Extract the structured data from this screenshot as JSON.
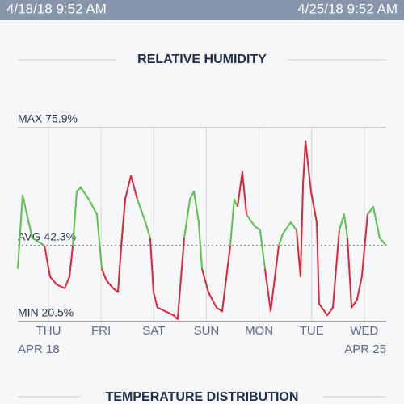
{
  "header": {
    "start": "4/18/18 9:52 AM",
    "end": "4/25/18 9:52 AM"
  },
  "chart_data": {
    "type": "line",
    "title": "RELATIVE HUMIDITY",
    "x": [
      0,
      2.2,
      6.6,
      12.2,
      14.7,
      17.7,
      21.4,
      23.6,
      25.1,
      26.9,
      28.7,
      32.4,
      36.1,
      38.3,
      40.5,
      43.5,
      45.7,
      47.2,
      49.0,
      51.6,
      54.5,
      58.2,
      60.4,
      61.9,
      63.7,
      67.4,
      71.1,
      72.9,
      75.9,
      78.5,
      80.3,
      82.5,
      84.0,
      86.9,
      90.6,
      93.2,
      96.9,
      98.7,
      100.2,
      102.4,
      104.3,
      107.9,
      110.5,
      112.7,
      115.3,
      119.0,
      120.8,
      124.5,
      127.1,
      128.9,
      130.1,
      131.2,
      133.7,
      136.3,
      137.4,
      141.1,
      143.7,
      146.6,
      148.8,
      150.3,
      152.2,
      154.7,
      156.9,
      159.5,
      162.1,
      165.0,
      168.0
    ],
    "series": [
      {
        "color": "#5cbf4e",
        "values": [
          35.6,
          56.6,
          44.4,
          42.2,
          null,
          null,
          null,
          null,
          42.2,
          57.7,
          58.8,
          55.5,
          51.1,
          35.6,
          null,
          null,
          null,
          42.2,
          55.5,
          null,
          55.5,
          48.9,
          44.4,
          null,
          null,
          null,
          null,
          null,
          44.4,
          55.5,
          57.7,
          48.9,
          35.6,
          null,
          null,
          null,
          42.2,
          55.5,
          53.3,
          null,
          51.1,
          47.8,
          46.6,
          35.6,
          null,
          42.2,
          45.5,
          48.9,
          46.6,
          null,
          59.9,
          null,
          57.7,
          48.9,
          null,
          null,
          null,
          46.6,
          51.1,
          44.4,
          null,
          null,
          null,
          51.1,
          53.3,
          44.4,
          42.2
        ]
      },
      {
        "color": "#e0243a",
        "values": [
          null,
          null,
          null,
          42.2,
          33.4,
          31.1,
          30.0,
          33.4,
          42.2,
          null,
          null,
          null,
          null,
          35.6,
          32.2,
          30.0,
          28.9,
          42.2,
          55.5,
          62.2,
          55.5,
          null,
          44.4,
          28.9,
          24.5,
          23.4,
          22.3,
          21.2,
          44.4,
          null,
          null,
          null,
          35.6,
          28.9,
          24.5,
          23.4,
          42.2,
          null,
          53.3,
          63.3,
          51.1,
          null,
          null,
          35.6,
          23.4,
          42.2,
          null,
          null,
          46.6,
          33.4,
          59.9,
          72.1,
          57.7,
          48.9,
          25.6,
          22.3,
          24.5,
          46.6,
          null,
          44.4,
          24.5,
          26.7,
          33.4,
          51.1,
          null,
          null,
          null
        ]
      }
    ],
    "xlim": [
      0,
      168
    ],
    "xticks": [
      {
        "value": 14,
        "label": "THU"
      },
      {
        "value": 38,
        "label": "FRI"
      },
      {
        "value": 62,
        "label": "SAT"
      },
      {
        "value": 86,
        "label": "SUN"
      },
      {
        "value": 110,
        "label": "MON"
      },
      {
        "value": 134,
        "label": "TUE"
      },
      {
        "value": 158,
        "label": "WED"
      }
    ],
    "range_labels": [
      "APR 18",
      "APR 25"
    ],
    "ylim": [
      20.5,
      75.9
    ],
    "yticks": [
      {
        "value": 75.9,
        "label": "MAX 75.9%"
      },
      {
        "value": 42.3,
        "label": "AVG 42.3%"
      },
      {
        "value": 20.5,
        "label": "MIN 20.5%"
      }
    ]
  },
  "next_section": "TEMPERATURE DISTRIBUTION"
}
